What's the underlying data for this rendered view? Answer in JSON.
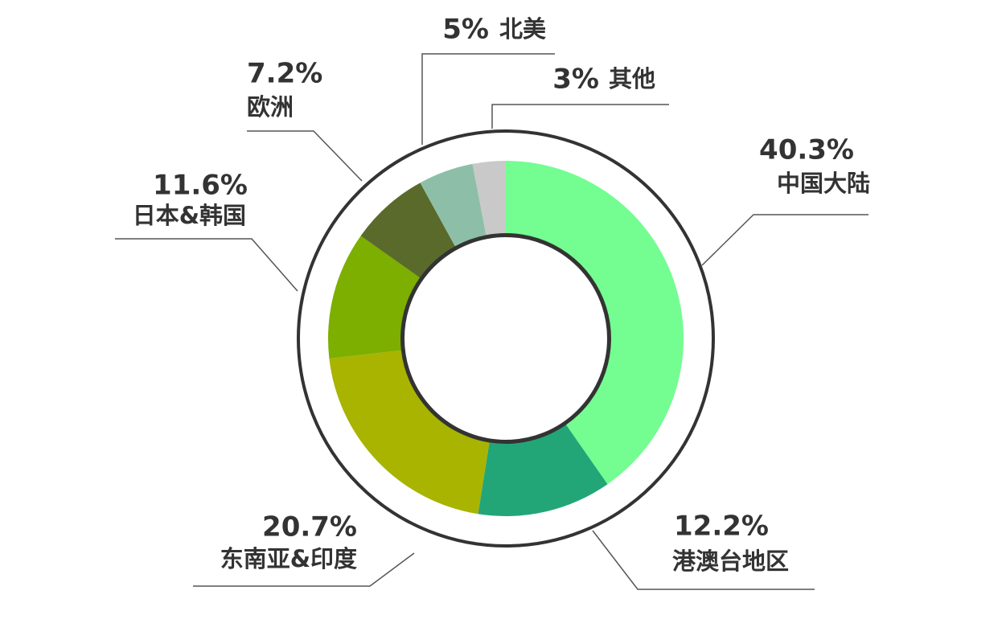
{
  "chart_data": {
    "type": "donut",
    "categories": [
      "中国大陆",
      "港澳台地区",
      "东南亚&印度",
      "日本&韩国",
      "欧洲",
      "北美",
      "其他"
    ],
    "values": [
      40.3,
      12.2,
      20.7,
      11.6,
      7.2,
      5,
      3
    ],
    "value_labels": [
      "40.3%",
      "12.2%",
      "20.7%",
      "11.6%",
      "7.2%",
      "5%",
      "3%"
    ],
    "colors": [
      "#74fd91",
      "#22a678",
      "#a8b400",
      "#7caf00",
      "#5a6a2a",
      "#8dbfa8",
      "#c9c9c9"
    ]
  }
}
